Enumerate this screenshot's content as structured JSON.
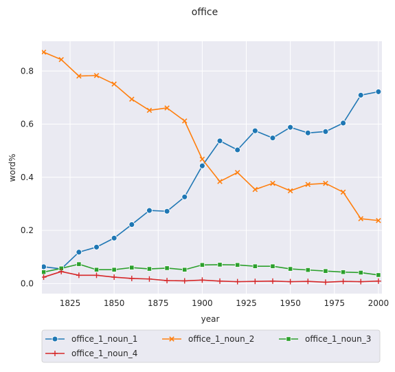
{
  "chart_data": {
    "type": "line",
    "title": "office",
    "xlabel": "year",
    "ylabel": "word%",
    "xlim": [
      1809,
      2002
    ],
    "ylim": [
      -0.038,
      0.912
    ],
    "x_ticks": [
      1825,
      1850,
      1875,
      1900,
      1925,
      1950,
      1975,
      2000
    ],
    "x_tick_labels": [
      "1825",
      "1850",
      "1875",
      "1900",
      "1925",
      "1950",
      "1975",
      "2000"
    ],
    "y_ticks": [
      0.0,
      0.2,
      0.4,
      0.6,
      0.8
    ],
    "y_tick_labels": [
      "0.0",
      "0.2",
      "0.4",
      "0.6",
      "0.8"
    ],
    "grid": true,
    "legend_placement": "bottom",
    "x": [
      1810,
      1820,
      1830,
      1840,
      1850,
      1860,
      1870,
      1880,
      1890,
      1900,
      1910,
      1920,
      1930,
      1940,
      1950,
      1960,
      1970,
      1980,
      1990,
      2000
    ],
    "series": [
      {
        "name": "office_1_noun_1",
        "color": "#1f77b4",
        "marker": "circle",
        "values": [
          0.063,
          0.055,
          0.118,
          0.137,
          0.171,
          0.222,
          0.275,
          0.272,
          0.326,
          0.443,
          0.537,
          0.503,
          0.575,
          0.548,
          0.588,
          0.567,
          0.572,
          0.604,
          0.709,
          0.722
        ]
      },
      {
        "name": "office_1_noun_2",
        "color": "#ff7f0e",
        "marker": "x",
        "values": [
          0.871,
          0.843,
          0.781,
          0.783,
          0.751,
          0.694,
          0.652,
          0.661,
          0.612,
          0.468,
          0.384,
          0.418,
          0.354,
          0.377,
          0.349,
          0.373,
          0.377,
          0.344,
          0.244,
          0.237
        ]
      },
      {
        "name": "office_1_noun_3",
        "color": "#2ca02c",
        "marker": "square",
        "values": [
          0.043,
          0.057,
          0.073,
          0.052,
          0.052,
          0.06,
          0.055,
          0.058,
          0.052,
          0.07,
          0.071,
          0.07,
          0.065,
          0.065,
          0.055,
          0.051,
          0.047,
          0.043,
          0.041,
          0.032
        ]
      },
      {
        "name": "office_1_noun_4",
        "color": "#d62728",
        "marker": "plus",
        "values": [
          0.024,
          0.045,
          0.031,
          0.031,
          0.024,
          0.019,
          0.017,
          0.011,
          0.01,
          0.013,
          0.009,
          0.007,
          0.008,
          0.009,
          0.007,
          0.008,
          0.005,
          0.008,
          0.007,
          0.009
        ]
      }
    ]
  }
}
